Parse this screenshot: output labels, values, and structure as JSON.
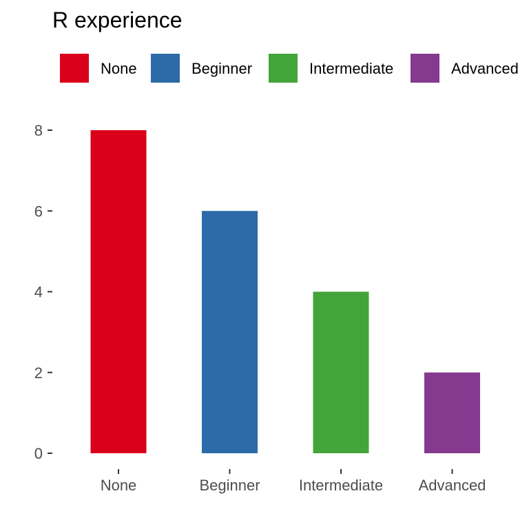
{
  "chart_data": {
    "type": "bar",
    "title": "R experience",
    "categories": [
      "None",
      "Beginner",
      "Intermediate",
      "Advanced"
    ],
    "values": [
      8,
      6,
      4,
      2
    ],
    "colors": [
      "#DA001B",
      "#2C6AA8",
      "#43A43A",
      "#85398F"
    ],
    "xlabel": "",
    "ylabel": "",
    "ylim": [
      0,
      8
    ],
    "yticks": [
      0,
      2,
      4,
      6,
      8
    ],
    "grid": false,
    "legend": {
      "position": "top-left",
      "entries": [
        "None",
        "Beginner",
        "Intermediate",
        "Advanced"
      ]
    }
  }
}
